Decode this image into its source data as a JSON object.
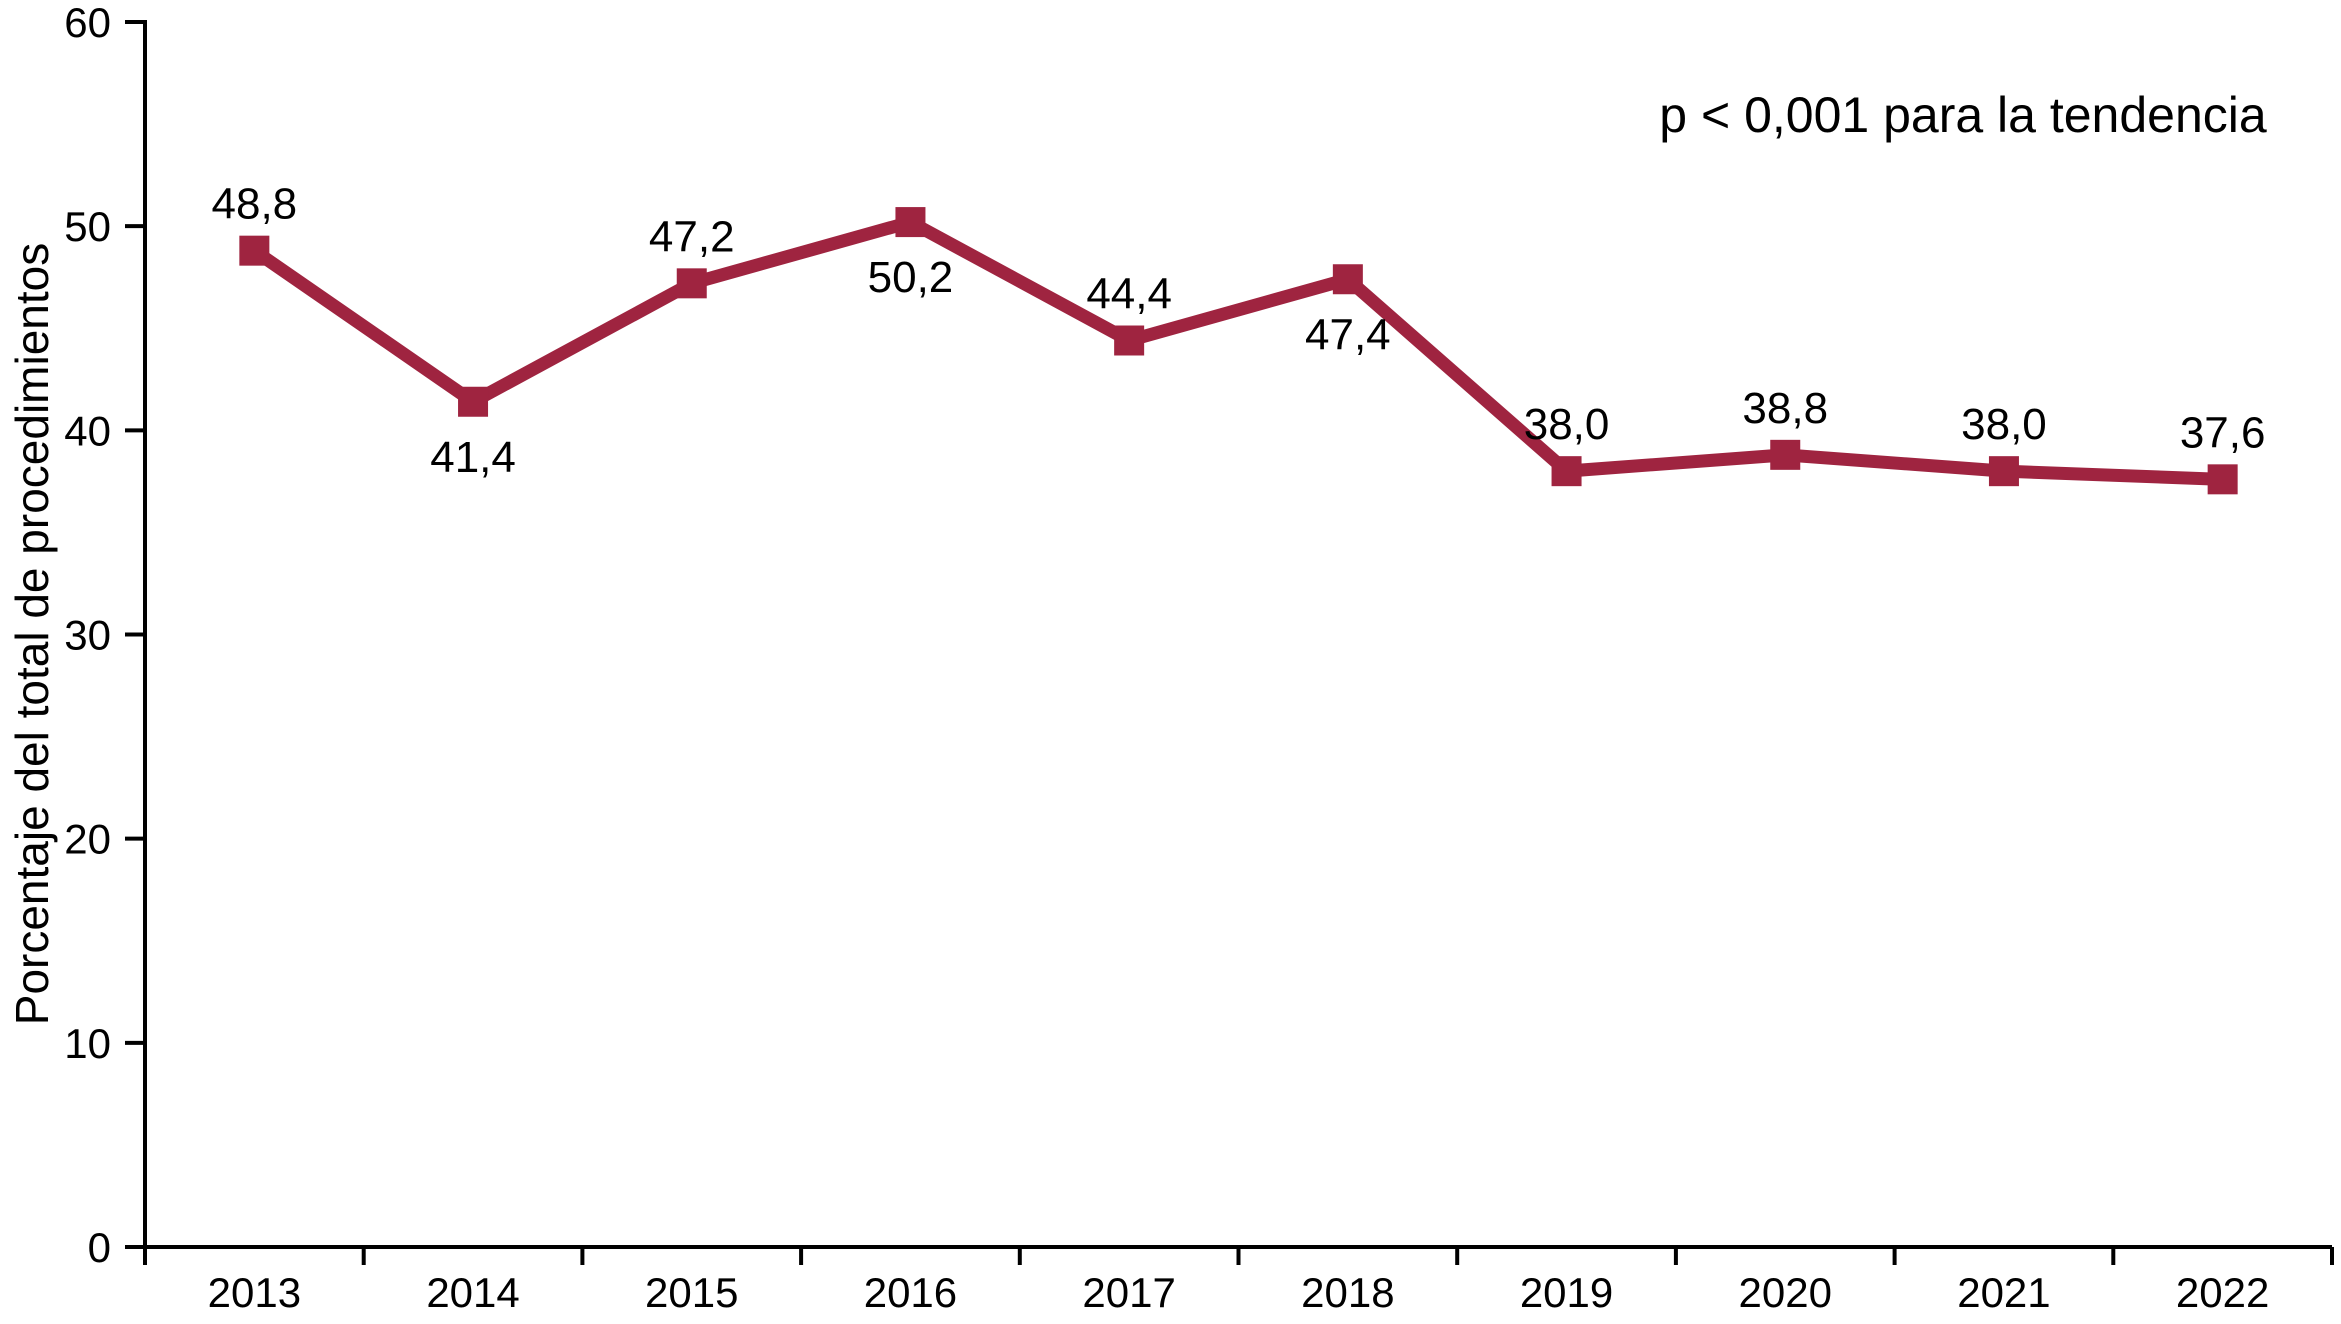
{
  "figure": {
    "y_axis_title": "Porcentaje del total de procedimientos",
    "annotation": "p < 0,001 para la tendencia"
  },
  "chart_data": {
    "type": "line",
    "title": "",
    "xlabel": "",
    "ylabel": "Porcentaje del total de procedimientos",
    "categories": [
      "2013",
      "2014",
      "2015",
      "2016",
      "2017",
      "2018",
      "2019",
      "2020",
      "2021",
      "2022"
    ],
    "values": [
      48.8,
      41.4,
      47.2,
      50.2,
      44.4,
      47.4,
      38.0,
      38.8,
      38.0,
      37.6
    ],
    "point_labels": [
      "48,8",
      "41,4",
      "47,2",
      "50,2",
      "44,4",
      "47,4",
      "38,0",
      "38,8",
      "38,0",
      "37,6"
    ],
    "label_positions": [
      "above",
      "below",
      "above",
      "below",
      "above",
      "below",
      "above",
      "above",
      "above",
      "above"
    ],
    "annotation": "p < 0,001 para la tendencia",
    "ylim": [
      0,
      60
    ],
    "yticks": [
      0,
      10,
      20,
      30,
      40,
      50,
      60
    ],
    "grid": false,
    "legend_position": "none",
    "line_color": "#9F2440",
    "marker": "square",
    "decimal_separator": ","
  }
}
